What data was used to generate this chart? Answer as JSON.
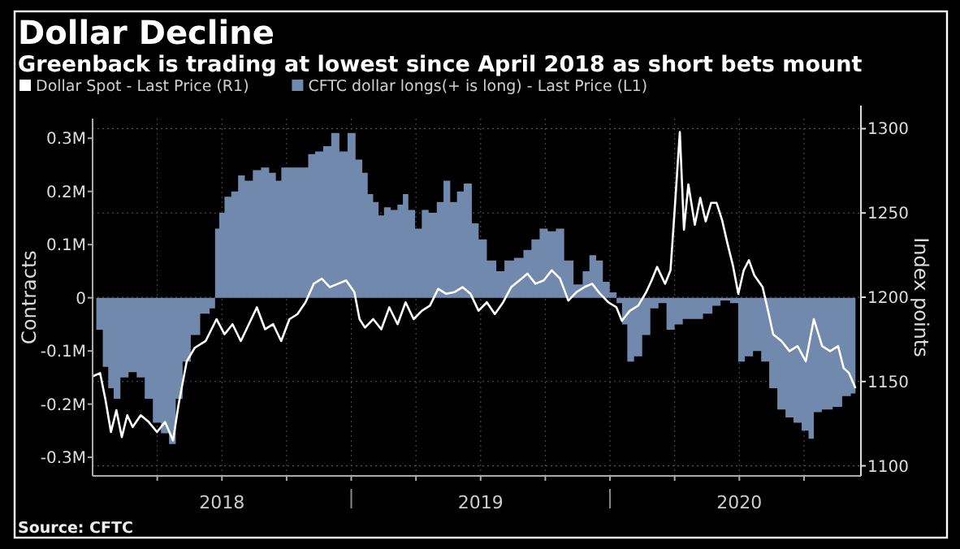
{
  "chart_data": {
    "type": "line",
    "title": "Dollar Decline",
    "subtitle": "Greenback is trading at lowest since April 2018 as short bets mount",
    "ylabel": "Contracts",
    "y2label": "Index points",
    "legend": "top left",
    "grid": true,
    "annotations": [
      "Source: CFTC"
    ],
    "xlim": [
      2018,
      2020.97
    ],
    "xticks": [
      {
        "value": 2018.25,
        "label": null
      },
      {
        "value": 2018.5,
        "label": "2018"
      },
      {
        "value": 2018.75,
        "label": null
      },
      {
        "value": 2019,
        "label": null
      },
      {
        "value": 2019.25,
        "label": null
      },
      {
        "value": 2019.5,
        "label": "2019"
      },
      {
        "value": 2019.75,
        "label": null
      },
      {
        "value": 2020,
        "label": null
      },
      {
        "value": 2020.25,
        "label": null
      },
      {
        "value": 2020.5,
        "label": "2020"
      },
      {
        "value": 2020.75,
        "label": null
      }
    ],
    "ylim": [
      -335000,
      337000
    ],
    "yticks": [
      {
        "value": -300000,
        "label": "-0.3M"
      },
      {
        "value": -200000,
        "label": "-0.2M"
      },
      {
        "value": -100000,
        "label": "-0.1M"
      },
      {
        "value": 0,
        "label": "0"
      },
      {
        "value": 100000,
        "label": "0.1M"
      },
      {
        "value": 200000,
        "label": "0.2M"
      },
      {
        "value": 300000,
        "label": "0.3M"
      }
    ],
    "y2lim": [
      1094,
      1306
    ],
    "y2ticks": [
      1100,
      1150,
      1200,
      1250,
      1300
    ],
    "series": [
      {
        "name": "Dollar Spot - Last Price (R1)",
        "axis": "y2",
        "color": "#ffffff",
        "x": [
          2018.0,
          2018.029,
          2018.05,
          2018.071,
          2018.092,
          2018.113,
          2018.134,
          2018.155,
          2018.186,
          2018.217,
          2018.249,
          2018.28,
          2018.311,
          2018.332,
          2018.364,
          2018.395,
          2018.437,
          2018.479,
          2018.51,
          2018.541,
          2018.573,
          2018.604,
          2018.635,
          2018.667,
          2018.698,
          2018.729,
          2018.761,
          2018.792,
          2018.823,
          2018.855,
          2018.886,
          2018.917,
          2018.949,
          2018.98,
          2019.012,
          2019.032,
          2019.053,
          2019.085,
          2019.116,
          2019.147,
          2019.179,
          2019.21,
          2019.241,
          2019.273,
          2019.304,
          2019.336,
          2019.367,
          2019.398,
          2019.43,
          2019.461,
          2019.492,
          2019.524,
          2019.555,
          2019.587,
          2019.618,
          2019.65,
          2019.681,
          2019.712,
          2019.744,
          2019.775,
          2019.807,
          2019.839,
          2019.87,
          2019.901,
          2019.931,
          2019.962,
          2019.994,
          2020.025,
          2020.046,
          2020.077,
          2020.109,
          2020.14,
          2020.161,
          2020.182,
          2020.213,
          2020.234,
          2020.251,
          2020.27,
          2020.286,
          2020.303,
          2020.328,
          2020.349,
          2020.37,
          2020.391,
          2020.412,
          2020.433,
          2020.454,
          2020.475,
          2020.496,
          2020.517,
          2020.537,
          2020.558,
          2020.59,
          2020.611,
          2020.631,
          2020.663,
          2020.694,
          2020.725,
          2020.757,
          2020.788,
          2020.82,
          2020.851,
          2020.882,
          2020.903,
          2020.924,
          2020.949
        ],
        "values": [
          1153,
          1155,
          1139,
          1120,
          1133,
          1117,
          1130,
          1123,
          1130,
          1126,
          1120,
          1126,
          1115,
          1136,
          1162,
          1170,
          1174,
          1187,
          1178,
          1184,
          1174,
          1184,
          1194,
          1181,
          1184,
          1174,
          1187,
          1190,
          1197,
          1208,
          1211,
          1206,
          1208,
          1210,
          1203,
          1187,
          1182,
          1187,
          1181,
          1194,
          1184,
          1197,
          1187,
          1192,
          1195,
          1205,
          1202,
          1203,
          1206,
          1202,
          1192,
          1197,
          1190,
          1197,
          1206,
          1210,
          1214,
          1208,
          1210,
          1216,
          1211,
          1198,
          1203,
          1206,
          1208,
          1202,
          1197,
          1194,
          1186,
          1192,
          1195,
          1203,
          1210,
          1218,
          1208,
          1216,
          1254,
          1298,
          1240,
          1267,
          1243,
          1259,
          1245,
          1256,
          1256,
          1246,
          1232,
          1219,
          1202,
          1216,
          1222,
          1213,
          1206,
          1192,
          1178,
          1174,
          1168,
          1171,
          1162,
          1187,
          1171,
          1168,
          1171,
          1158,
          1155,
          1146
        ]
      },
      {
        "name": "CFTC dollar longs(+ is long) - Last Price (L1)",
        "type": "area",
        "color": "#7189ad",
        "x": [
          2018.0,
          2018.029,
          2018.05,
          2018.071,
          2018.092,
          2018.123,
          2018.155,
          2018.186,
          2018.217,
          2018.249,
          2018.28,
          2018.311,
          2018.332,
          2018.364,
          2018.395,
          2018.437,
          2018.468,
          2018.479,
          2018.5,
          2018.52,
          2018.552,
          2018.573,
          2018.604,
          2018.635,
          2018.667,
          2018.698,
          2018.719,
          2018.74,
          2018.782,
          2018.823,
          2018.844,
          2018.876,
          2018.907,
          2018.938,
          2018.97,
          2019.001,
          2019.032,
          2019.053,
          2019.074,
          2019.095,
          2019.116,
          2019.137,
          2019.168,
          2019.189,
          2019.21,
          2019.231,
          2019.262,
          2019.283,
          2019.315,
          2019.346,
          2019.367,
          2019.398,
          2019.419,
          2019.45,
          2019.482,
          2019.503,
          2019.545,
          2019.576,
          2019.608,
          2019.65,
          2019.681,
          2019.712,
          2019.744,
          2019.775,
          2019.807,
          2019.839,
          2019.879,
          2019.91,
          2019.931,
          2019.962,
          2019.983,
          2020.015,
          2020.036,
          2020.057,
          2020.077,
          2020.109,
          2020.14,
          2020.172,
          2020.203,
          2020.234,
          2020.266,
          2020.297,
          2020.339,
          2020.38,
          2020.412,
          2020.443,
          2020.485,
          2020.506,
          2020.537,
          2020.569,
          2020.6,
          2020.631,
          2020.663,
          2020.694,
          2020.725,
          2020.757,
          2020.778,
          2020.798,
          2020.84,
          2020.882,
          2020.913,
          2020.949
        ],
        "values": [
          0,
          -60000,
          -130000,
          -170000,
          -190000,
          -150000,
          -140000,
          -150000,
          -190000,
          -235000,
          -255000,
          -275000,
          -190000,
          -120000,
          -70000,
          -30000,
          -20000,
          130000,
          160000,
          190000,
          200000,
          230000,
          220000,
          240000,
          245000,
          235000,
          220000,
          245000,
          245000,
          245000,
          270000,
          275000,
          285000,
          310000,
          275000,
          310000,
          260000,
          235000,
          195000,
          180000,
          155000,
          170000,
          165000,
          175000,
          195000,
          165000,
          130000,
          165000,
          160000,
          180000,
          220000,
          180000,
          200000,
          215000,
          140000,
          110000,
          70000,
          50000,
          70000,
          75000,
          90000,
          110000,
          130000,
          125000,
          130000,
          70000,
          25000,
          50000,
          80000,
          70000,
          30000,
          10000,
          -10000,
          -50000,
          -120000,
          -110000,
          -70000,
          -20000,
          -10000,
          -60000,
          -50000,
          -40000,
          -40000,
          -30000,
          -15000,
          -5000,
          -10000,
          -120000,
          -110000,
          -100000,
          -120000,
          -170000,
          -210000,
          -225000,
          -235000,
          -250000,
          -265000,
          -215000,
          -210000,
          -205000,
          -185000,
          -180000
        ]
      }
    ]
  }
}
